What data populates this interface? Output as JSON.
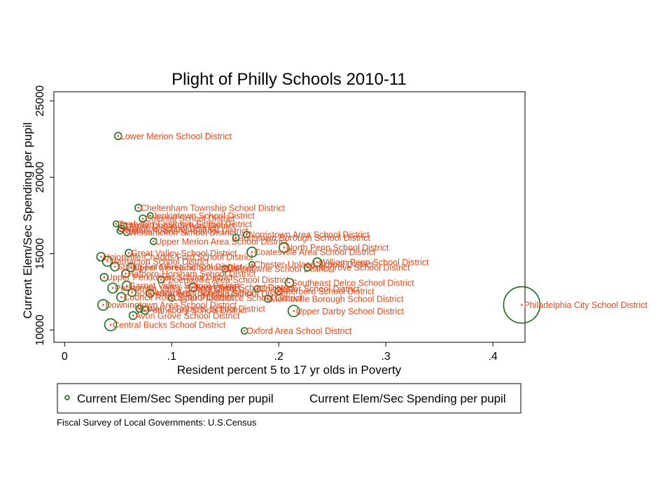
{
  "chart_data": {
    "type": "scatter",
    "title": "Plight of Philly Schools 2010-11",
    "xlabel": "Resident percent 5 to 17 yr olds in Poverty",
    "ylabel": "Current Elem/Sec Spending per pupil",
    "xlim": [
      -0.01,
      0.43
    ],
    "ylim": [
      9200,
      25600
    ],
    "xticks": [
      0,
      0.1,
      0.2,
      0.3,
      0.4
    ],
    "xtick_labels": [
      "0",
      ".1",
      ".2",
      ".3",
      ".4"
    ],
    "yticks": [
      10000,
      15000,
      20000,
      25000
    ],
    "ytick_labels": [
      "10000",
      "15000",
      "20000",
      "25000"
    ],
    "grid": false,
    "legend": {
      "position": "bottom",
      "entries": [
        "Current Elem/Sec Spending per pupil",
        "Current Elem/Sec Spending per pupil"
      ]
    },
    "note": "Fiscal Survey of Local Governments: U.S.Census",
    "colors": {
      "marker": "#1a6b1a",
      "label": "#e8491b"
    },
    "series": [
      {
        "marker": "hollow-circle-weighted",
        "points": [
          {
            "x": 0.05,
            "y": 22700,
            "w": 1.0,
            "label": "Lower Merion School District"
          },
          {
            "x": 0.069,
            "y": 18000,
            "w": 1.0,
            "label": "Cheltenham Township School District"
          },
          {
            "x": 0.08,
            "y": 17500,
            "w": 0.8,
            "label": "Jenkintown School District"
          },
          {
            "x": 0.073,
            "y": 17300,
            "w": 1.0,
            "label": "Colonial School District"
          },
          {
            "x": 0.048,
            "y": 16950,
            "w": 0.8,
            "label": "Tredyffrin-Easttown School District"
          },
          {
            "x": 0.055,
            "y": 16850,
            "w": 0.8,
            "label": "Upper Dublin School District"
          },
          {
            "x": 0.053,
            "y": 16650,
            "w": 0.9,
            "label": "Abington School District"
          },
          {
            "x": 0.052,
            "y": 16500,
            "w": 0.9,
            "label": "Radnor Township School District"
          },
          {
            "x": 0.058,
            "y": 16400,
            "w": 0.9,
            "label": "Wissahickon School District"
          },
          {
            "x": 0.17,
            "y": 16250,
            "w": 0.9,
            "label": "Norristown Area School District"
          },
          {
            "x": 0.16,
            "y": 16050,
            "w": 0.9,
            "label": "Pottstown Borough School District"
          },
          {
            "x": 0.083,
            "y": 15800,
            "w": 0.9,
            "label": "Upper Merion Area School District"
          },
          {
            "x": 0.205,
            "y": 15400,
            "w": 1.4,
            "label": "North Penn School District"
          },
          {
            "x": 0.175,
            "y": 15100,
            "w": 1.4,
            "label": "Coatesville Area School District"
          },
          {
            "x": 0.06,
            "y": 15050,
            "w": 1.0,
            "label": "Great Valley School District"
          },
          {
            "x": 0.034,
            "y": 14800,
            "w": 1.2,
            "label": "Unionville-Chadds Ford School District"
          },
          {
            "x": 0.04,
            "y": 14500,
            "w": 1.4,
            "label": "Methacton School District"
          },
          {
            "x": 0.236,
            "y": 14450,
            "w": 1.2,
            "label": "William Penn School District"
          },
          {
            "x": 0.175,
            "y": 14300,
            "w": 0.8,
            "label": "Chester-Upland School District"
          },
          {
            "x": 0.047,
            "y": 14150,
            "w": 1.2,
            "label": "Spring-Ford Area School District"
          },
          {
            "x": 0.062,
            "y": 14100,
            "w": 1.2,
            "label": "Upper Moreland School District"
          },
          {
            "x": 0.227,
            "y": 14100,
            "w": 1.0,
            "label": "Pottsgrove School District"
          },
          {
            "x": 0.15,
            "y": 14000,
            "w": 0.9,
            "label": "Lansdowne School District"
          },
          {
            "x": 0.057,
            "y": 13700,
            "w": 1.1,
            "label": "Hatboro-Horsham School District"
          },
          {
            "x": 0.037,
            "y": 13450,
            "w": 1.1,
            "label": "Upper Perkiomen School District"
          },
          {
            "x": 0.09,
            "y": 13300,
            "w": 0.9,
            "label": "Phoenixville Area School District"
          },
          {
            "x": 0.21,
            "y": 13100,
            "w": 1.2,
            "label": "Southeast Delco School District"
          },
          {
            "x": 0.045,
            "y": 12750,
            "w": 1.4,
            "label": "Perkiomen Valley School District"
          },
          {
            "x": 0.058,
            "y": 12900,
            "w": 1.3,
            "label": "Garnet Valley School District"
          },
          {
            "x": 0.12,
            "y": 12800,
            "w": 1.2,
            "label": "Springfield School District"
          },
          {
            "x": 0.18,
            "y": 12700,
            "w": 0.9,
            "label": "Chichester School District"
          },
          {
            "x": 0.2,
            "y": 12550,
            "w": 1.0,
            "label": "Interboro School District"
          },
          {
            "x": 0.063,
            "y": 12450,
            "w": 1.1,
            "label": "Souderton Area School District"
          },
          {
            "x": 0.08,
            "y": 12400,
            "w": 1.1,
            "label": "Haverford Township School District"
          },
          {
            "x": 0.053,
            "y": 12150,
            "w": 1.3,
            "label": "Council Rock School District"
          },
          {
            "x": 0.19,
            "y": 12050,
            "w": 1.0,
            "label": "Morrisville Borough School District"
          },
          {
            "x": 0.1,
            "y": 12100,
            "w": 0.9,
            "label": "Upper Providence School District"
          },
          {
            "x": 0.036,
            "y": 11650,
            "w": 1.5,
            "label": "Downingtown Area School District"
          },
          {
            "x": 0.07,
            "y": 11400,
            "w": 1.0,
            "label": "Owen J. Roberts School District"
          },
          {
            "x": 0.075,
            "y": 11300,
            "w": 1.1,
            "label": "Pennsbury School District"
          },
          {
            "x": 0.214,
            "y": 11250,
            "w": 1.6,
            "label": "Upper Darby School District"
          },
          {
            "x": 0.064,
            "y": 10950,
            "w": 1.1,
            "label": "Avon Grove School District"
          },
          {
            "x": 0.043,
            "y": 10350,
            "w": 1.7,
            "label": "Central Bucks School District"
          },
          {
            "x": 0.168,
            "y": 9950,
            "w": 0.9,
            "label": "Oxford Area School District"
          },
          {
            "x": 0.427,
            "y": 11650,
            "w": 5.2,
            "label": "Philadelphia City School District"
          }
        ]
      }
    ]
  }
}
